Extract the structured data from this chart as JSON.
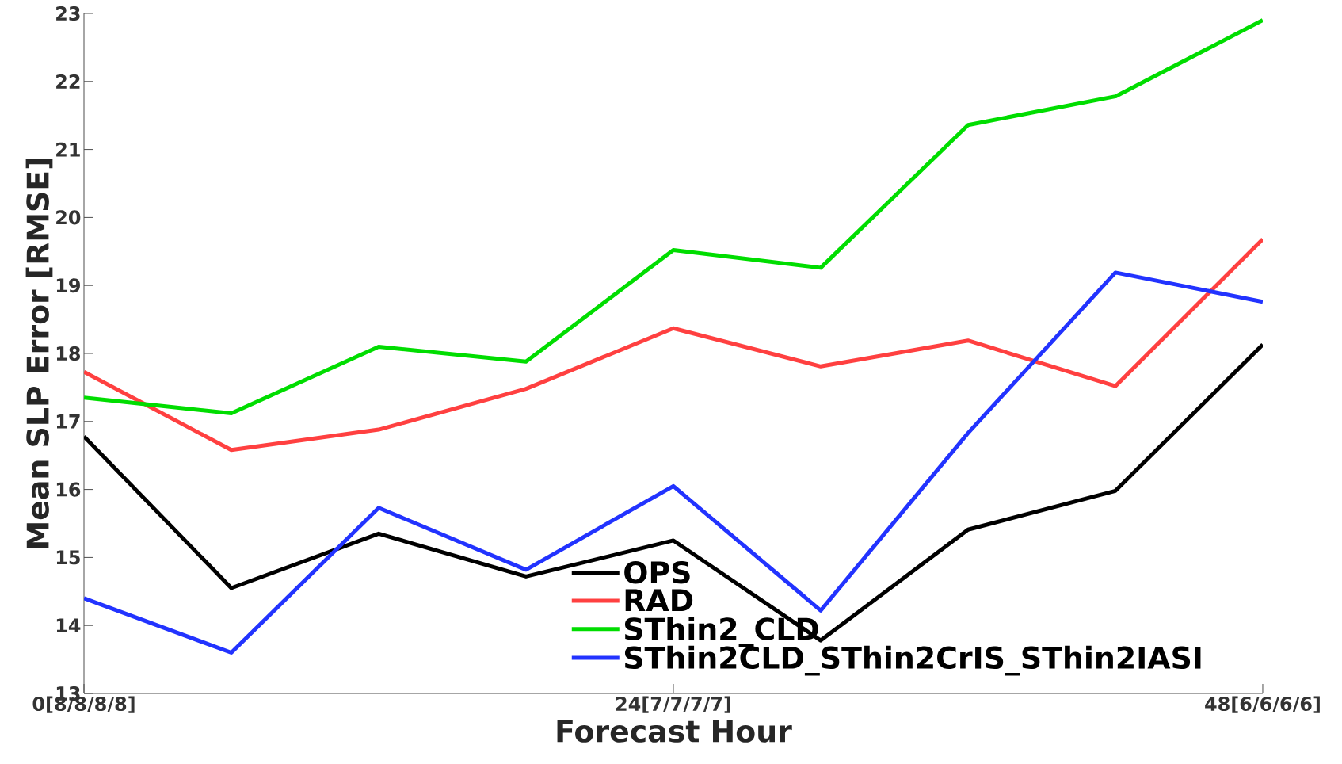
{
  "chart_data": {
    "type": "line",
    "xlabel": "Forecast Hour",
    "ylabel": "Mean SLP Error [RMSE]",
    "categories": [
      "0[8/8/8/8]",
      null,
      null,
      null,
      "24[7/7/7/7]",
      null,
      null,
      null,
      "48[6/6/6/6]"
    ],
    "ylim": [
      13,
      23
    ],
    "yticks": [
      13,
      14,
      15,
      16,
      17,
      18,
      19,
      20,
      21,
      22,
      23
    ],
    "legend": "bottom",
    "marker": "none",
    "line_style": "solid",
    "series": [
      {
        "name": "OPS",
        "color": "#000000",
        "values": [
          16.78,
          14.55,
          15.35,
          14.72,
          15.25,
          13.78,
          15.41,
          15.98,
          18.13
        ]
      },
      {
        "name": "RAD",
        "color": "#ff4040",
        "values": [
          17.73,
          16.58,
          16.88,
          17.48,
          18.37,
          17.81,
          18.19,
          17.52,
          19.68
        ]
      },
      {
        "name": "SThin2_CLD",
        "color": "#00dd00",
        "values": [
          17.35,
          17.12,
          18.1,
          17.88,
          19.52,
          19.26,
          21.36,
          21.78,
          22.9
        ]
      },
      {
        "name": "SThin2CLD_SThin2CrIS_SThin2IASI",
        "color": "#2233ff",
        "values": [
          14.4,
          13.6,
          15.73,
          14.82,
          16.05,
          14.22,
          16.83,
          19.19,
          18.76
        ]
      }
    ]
  }
}
